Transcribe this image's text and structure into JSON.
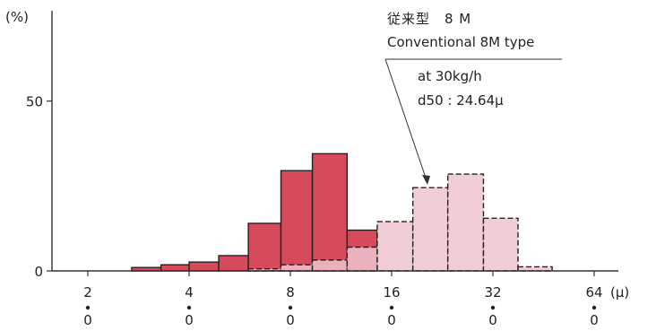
{
  "chart_data": {
    "type": "bar",
    "y_unit_label": "(%)",
    "x_unit_label": "(μ)",
    "x_scale": "log2",
    "x_ticks": [
      {
        "value": 2,
        "label": "2",
        "sub": "0"
      },
      {
        "value": 4,
        "label": "4",
        "sub": "0"
      },
      {
        "value": 8,
        "label": "8",
        "sub": "0"
      },
      {
        "value": 16,
        "label": "16",
        "sub": "0"
      },
      {
        "value": 32,
        "label": "32",
        "sub": "0"
      },
      {
        "value": 64,
        "label": "64",
        "sub": "0"
      }
    ],
    "y_ticks": [
      {
        "value": 0,
        "label": "0"
      },
      {
        "value": 50,
        "label": "50"
      }
    ],
    "ylim": [
      0,
      75
    ],
    "series": [
      {
        "style": "solid",
        "color": "#d64a5c",
        "bins": [
          {
            "from": 2.7,
            "to": 3.3,
            "value": 1
          },
          {
            "from": 3.3,
            "to": 4.0,
            "value": 1.8
          },
          {
            "from": 4.0,
            "to": 4.9,
            "value": 2.6
          },
          {
            "from": 4.9,
            "to": 6.0,
            "value": 4.5
          },
          {
            "from": 6.0,
            "to": 7.5,
            "value": 14
          },
          {
            "from": 7.5,
            "to": 9.3,
            "value": 29.5
          },
          {
            "from": 9.3,
            "to": 11.8,
            "value": 34.5
          },
          {
            "from": 11.8,
            "to": 14.5,
            "value": 12
          }
        ]
      },
      {
        "style": "dashed",
        "color": "#efc4ce",
        "bins": [
          {
            "from": 6.0,
            "to": 7.5,
            "value": 0.6
          },
          {
            "from": 7.5,
            "to": 9.3,
            "value": 1.8
          },
          {
            "from": 9.3,
            "to": 11.8,
            "value": 3.2
          },
          {
            "from": 11.8,
            "to": 14.5,
            "value": 7
          },
          {
            "from": 14.5,
            "to": 18.5,
            "value": 14.5
          },
          {
            "from": 18.5,
            "to": 23.5,
            "value": 24.5
          },
          {
            "from": 23.5,
            "to": 30,
            "value": 28.5
          },
          {
            "from": 30,
            "to": 38,
            "value": 15.5
          },
          {
            "from": 38,
            "to": 48,
            "value": 1.2
          }
        ]
      }
    ]
  },
  "annotation": {
    "line1": "従来型　8 M",
    "line2": "Conventional 8M type",
    "line3": "at 30kg/h",
    "line4": "d50 : 24.64μ"
  }
}
